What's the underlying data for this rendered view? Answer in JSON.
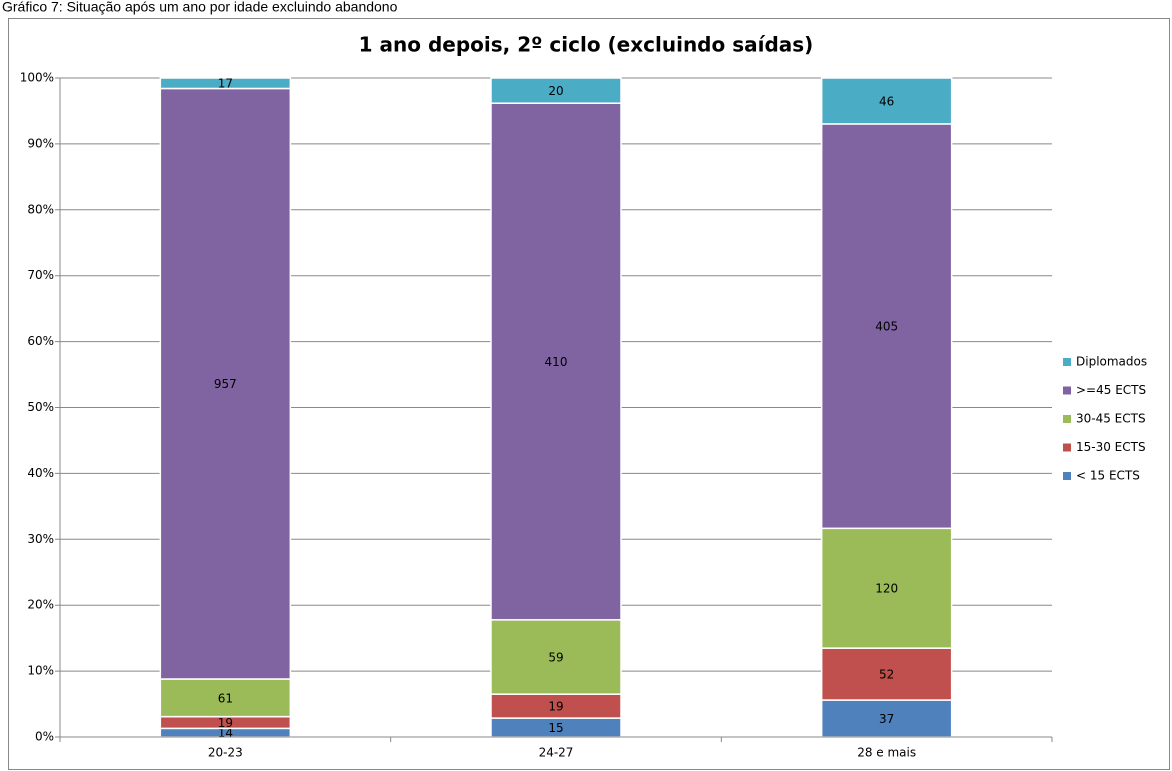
{
  "caption": "Gráfico 7: Situação após um ano por idade excluindo abandono",
  "chart_data": {
    "type": "bar",
    "stacking": "percent",
    "title": "1 ano depois, 2º ciclo (excluindo saídas)",
    "categories": [
      "20-23",
      "24-27",
      "28 e mais"
    ],
    "series": [
      {
        "name": "< 15 ECTS",
        "color": "#4f81bd",
        "values": [
          14,
          15,
          37
        ]
      },
      {
        "name": "15-30 ECTS",
        "color": "#c0504d",
        "values": [
          19,
          19,
          52
        ]
      },
      {
        "name": "30-45 ECTS",
        "color": "#9bbb59",
        "values": [
          61,
          59,
          120
        ]
      },
      {
        "name": ">=45 ECTS",
        "color": "#8064a2",
        "values": [
          957,
          410,
          405
        ]
      },
      {
        "name": "Diplomados",
        "color": "#4bacc6",
        "values": [
          17,
          20,
          46
        ]
      }
    ],
    "ylim": [
      0,
      100
    ],
    "yticks": [
      {
        "value": 0,
        "label": "0%"
      },
      {
        "value": 10,
        "label": "10%"
      },
      {
        "value": 20,
        "label": "20%"
      },
      {
        "value": 30,
        "label": "30%"
      },
      {
        "value": 40,
        "label": "40%"
      },
      {
        "value": 50,
        "label": "50%"
      },
      {
        "value": 60,
        "label": "60%"
      },
      {
        "value": 70,
        "label": "70%"
      },
      {
        "value": 80,
        "label": "80%"
      },
      {
        "value": 90,
        "label": "90%"
      },
      {
        "value": 100,
        "label": "100%"
      }
    ],
    "grid": true,
    "legend": "right"
  }
}
